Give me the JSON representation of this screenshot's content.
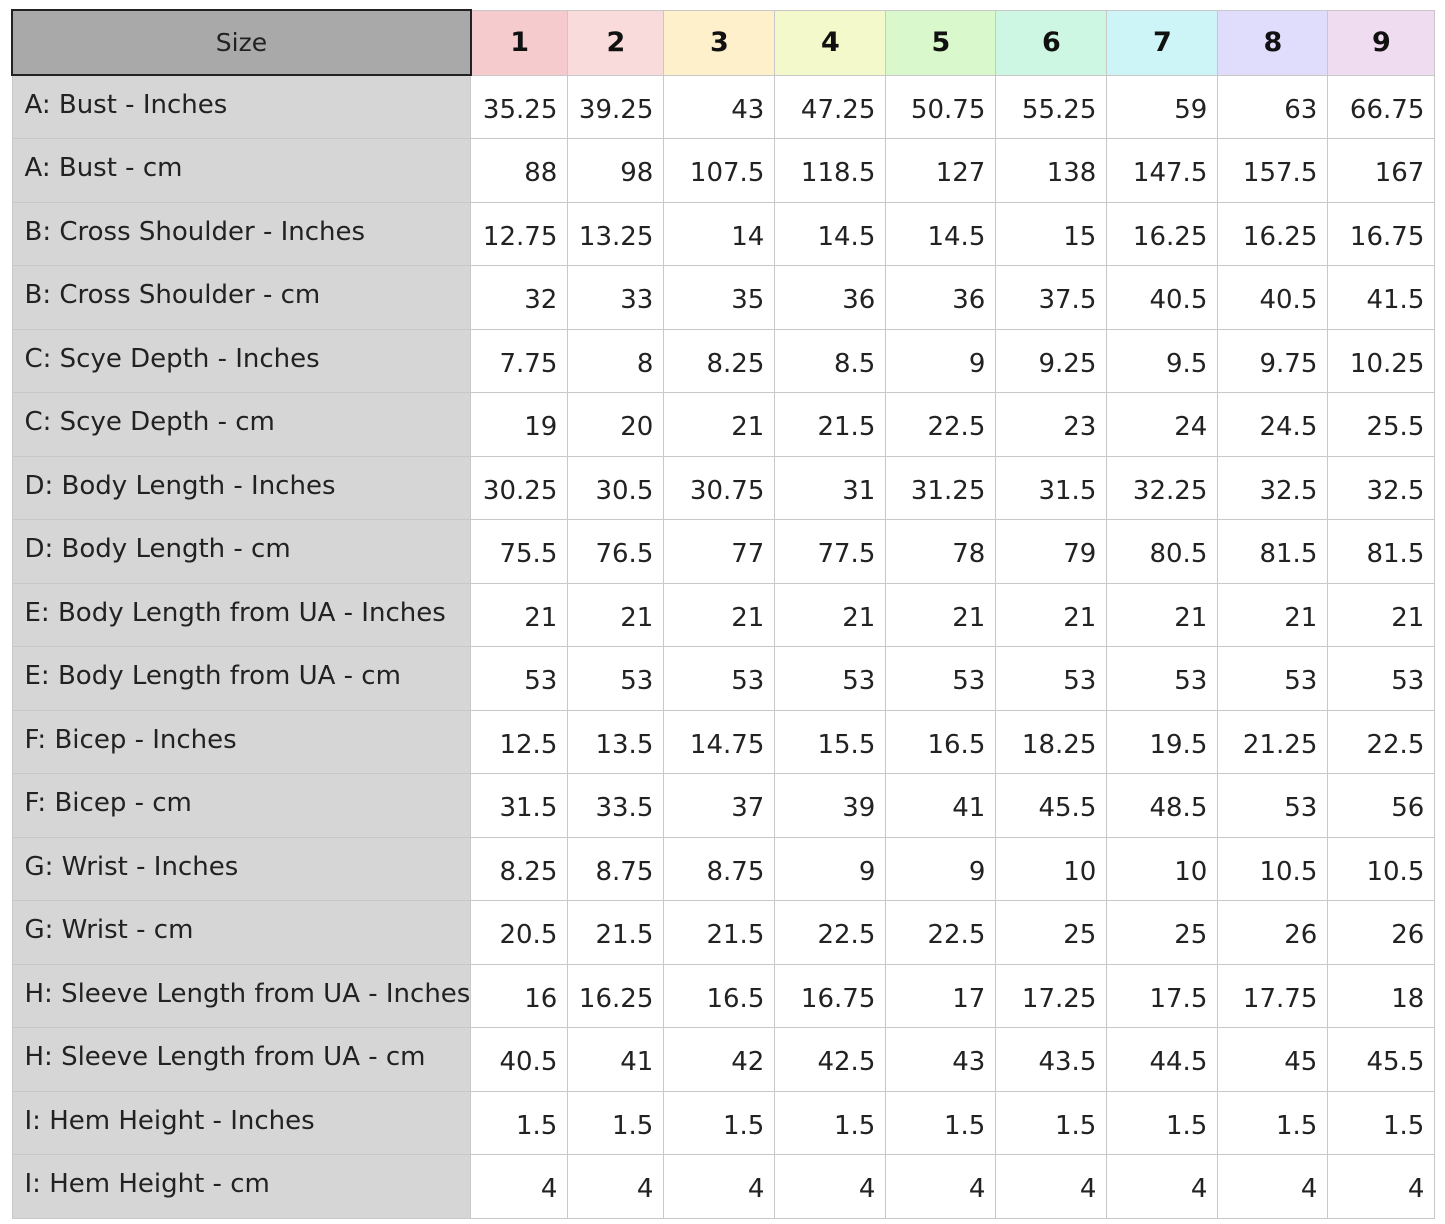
{
  "table": {
    "corner_label": "Size",
    "sizes": [
      "1",
      "2",
      "3",
      "4",
      "5",
      "6",
      "7",
      "8",
      "9"
    ],
    "size_colors": [
      "#f5cbce",
      "#fadbdb",
      "#fdf0cb",
      "#f4f9cc",
      "#d9f8cc",
      "#cdf7e2",
      "#cdf5f7",
      "#e0dcfb",
      "#efdcf0"
    ],
    "rows": [
      {
        "label": "A: Bust - Inches",
        "values": [
          "35.25",
          "39.25",
          "43",
          "47.25",
          "50.75",
          "55.25",
          "59",
          "63",
          "66.75"
        ]
      },
      {
        "label": "A: Bust - cm",
        "values": [
          "88",
          "98",
          "107.5",
          "118.5",
          "127",
          "138",
          "147.5",
          "157.5",
          "167"
        ]
      },
      {
        "label": "B: Cross Shoulder - Inches",
        "values": [
          "12.75",
          "13.25",
          "14",
          "14.5",
          "14.5",
          "15",
          "16.25",
          "16.25",
          "16.75"
        ]
      },
      {
        "label": "B: Cross Shoulder - cm",
        "values": [
          "32",
          "33",
          "35",
          "36",
          "36",
          "37.5",
          "40.5",
          "40.5",
          "41.5"
        ]
      },
      {
        "label": "C: Scye Depth - Inches",
        "values": [
          "7.75",
          "8",
          "8.25",
          "8.5",
          "9",
          "9.25",
          "9.5",
          "9.75",
          "10.25"
        ]
      },
      {
        "label": "C: Scye Depth - cm",
        "values": [
          "19",
          "20",
          "21",
          "21.5",
          "22.5",
          "23",
          "24",
          "24.5",
          "25.5"
        ]
      },
      {
        "label": "D: Body Length - Inches",
        "values": [
          "30.25",
          "30.5",
          "30.75",
          "31",
          "31.25",
          "31.5",
          "32.25",
          "32.5",
          "32.5"
        ]
      },
      {
        "label": "D: Body Length - cm",
        "values": [
          "75.5",
          "76.5",
          "77",
          "77.5",
          "78",
          "79",
          "80.5",
          "81.5",
          "81.5"
        ]
      },
      {
        "label": "E: Body Length from UA - Inches",
        "values": [
          "21",
          "21",
          "21",
          "21",
          "21",
          "21",
          "21",
          "21",
          "21"
        ]
      },
      {
        "label": "E: Body Length from UA - cm",
        "values": [
          "53",
          "53",
          "53",
          "53",
          "53",
          "53",
          "53",
          "53",
          "53"
        ]
      },
      {
        "label": "F: Bicep - Inches",
        "values": [
          "12.5",
          "13.5",
          "14.75",
          "15.5",
          "16.5",
          "18.25",
          "19.5",
          "21.25",
          "22.5"
        ]
      },
      {
        "label": "F: Bicep - cm",
        "values": [
          "31.5",
          "33.5",
          "37",
          "39",
          "41",
          "45.5",
          "48.5",
          "53",
          "56"
        ]
      },
      {
        "label": "G: Wrist - Inches",
        "values": [
          "8.25",
          "8.75",
          "8.75",
          "9",
          "9",
          "10",
          "10",
          "10.5",
          "10.5"
        ]
      },
      {
        "label": "G: Wrist - cm",
        "values": [
          "20.5",
          "21.5",
          "21.5",
          "22.5",
          "22.5",
          "25",
          "25",
          "26",
          "26"
        ]
      },
      {
        "label": "H: Sleeve Length from UA - Inches",
        "values": [
          "16",
          "16.25",
          "16.5",
          "16.75",
          "17",
          "17.25",
          "17.5",
          "17.75",
          "18"
        ]
      },
      {
        "label": "H: Sleeve Length from UA - cm",
        "values": [
          "40.5",
          "41",
          "42",
          "42.5",
          "43",
          "43.5",
          "44.5",
          "45",
          "45.5"
        ]
      },
      {
        "label": "I: Hem Height - Inches",
        "values": [
          "1.5",
          "1.5",
          "1.5",
          "1.5",
          "1.5",
          "1.5",
          "1.5",
          "1.5",
          "1.5"
        ]
      },
      {
        "label": "I: Hem Height - cm",
        "values": [
          "4",
          "4",
          "4",
          "4",
          "4",
          "4",
          "4",
          "4",
          "4"
        ]
      }
    ]
  }
}
